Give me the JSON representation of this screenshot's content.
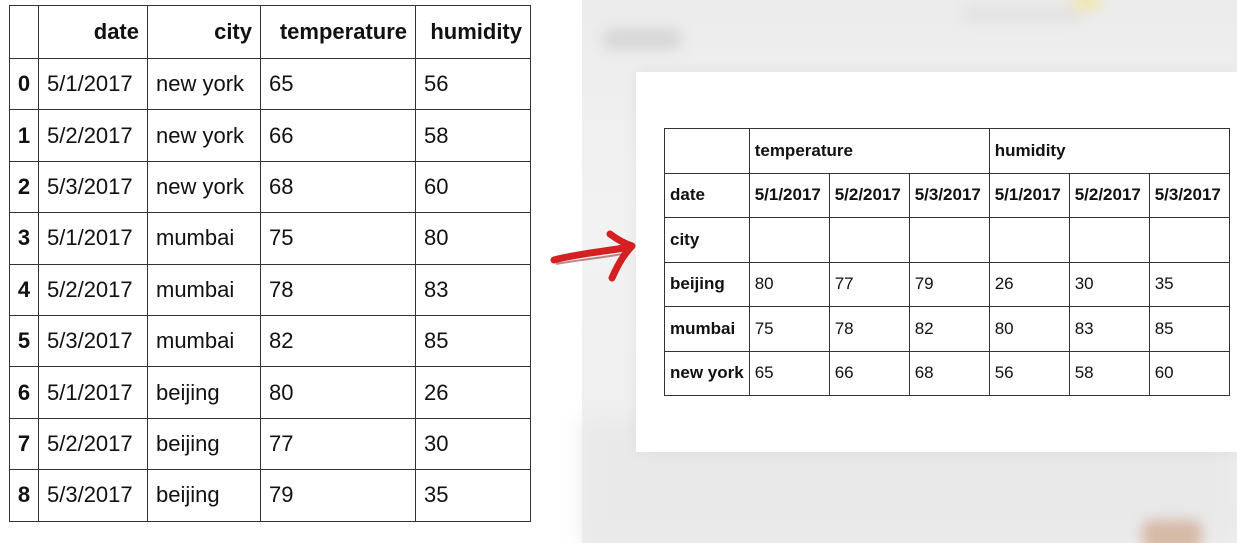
{
  "left_table": {
    "index_header": "",
    "columns": [
      "date",
      "city",
      "temperature",
      "humidity"
    ],
    "rows": [
      {
        "index": "0",
        "date": "5/1/2017",
        "city": "new york",
        "temperature": "65",
        "humidity": "56"
      },
      {
        "index": "1",
        "date": "5/2/2017",
        "city": "new york",
        "temperature": "66",
        "humidity": "58"
      },
      {
        "index": "2",
        "date": "5/3/2017",
        "city": "new york",
        "temperature": "68",
        "humidity": "60"
      },
      {
        "index": "3",
        "date": "5/1/2017",
        "city": "mumbai",
        "temperature": "75",
        "humidity": "80"
      },
      {
        "index": "4",
        "date": "5/2/2017",
        "city": "mumbai",
        "temperature": "78",
        "humidity": "83"
      },
      {
        "index": "5",
        "date": "5/3/2017",
        "city": "mumbai",
        "temperature": "82",
        "humidity": "85"
      },
      {
        "index": "6",
        "date": "5/1/2017",
        "city": "beijing",
        "temperature": "80",
        "humidity": "26"
      },
      {
        "index": "7",
        "date": "5/2/2017",
        "city": "beijing",
        "temperature": "77",
        "humidity": "30"
      },
      {
        "index": "8",
        "date": "5/3/2017",
        "city": "beijing",
        "temperature": "79",
        "humidity": "35"
      }
    ]
  },
  "arrow": {
    "icon": "right-arrow-icon",
    "color": "#d42020"
  },
  "pivot_table": {
    "top_headers": [
      "temperature",
      "humidity"
    ],
    "row_axis_label": "date",
    "index_name": "city",
    "dates": [
      "5/1/2017",
      "5/2/2017",
      "5/3/2017",
      "5/1/2017",
      "5/2/2017",
      "5/3/2017"
    ],
    "rows": [
      {
        "city": "beijing",
        "values": [
          "80",
          "77",
          "79",
          "26",
          "30",
          "35"
        ]
      },
      {
        "city": "mumbai",
        "values": [
          "75",
          "78",
          "82",
          "80",
          "83",
          "85"
        ]
      },
      {
        "city": "new york",
        "values": [
          "65",
          "66",
          "68",
          "56",
          "58",
          "60"
        ]
      }
    ]
  }
}
